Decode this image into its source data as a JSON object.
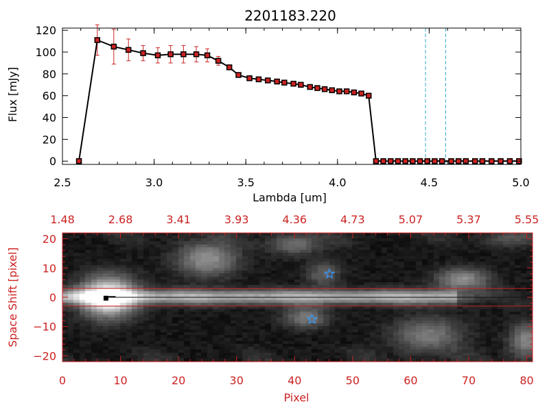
{
  "title": "2201183.220",
  "colors": {
    "black": "#000000",
    "red": "#cc2222",
    "marker_fill": "#cc2222",
    "vline": "#33aacc",
    "star": "#3399ff"
  },
  "chart_data": [
    {
      "type": "line",
      "title": "2201183.220",
      "xlabel": "Lambda [um]",
      "ylabel": "Flux [mJy]",
      "xlim": [
        2.5,
        5.0
      ],
      "ylim": [
        -3,
        122
      ],
      "xticks": [
        2.5,
        3.0,
        3.5,
        4.0,
        4.5,
        5.0
      ],
      "xtick_labels": [
        "2.5",
        "3.0",
        "3.5",
        "4.0",
        "4.5",
        "5.0"
      ],
      "yticks": [
        0,
        20,
        40,
        60,
        80,
        100,
        120
      ],
      "ytick_labels": [
        "0",
        "20",
        "40",
        "60",
        "80",
        "100",
        "120"
      ],
      "grid": false,
      "vertical_lines": [
        4.48,
        4.59
      ],
      "series": [
        {
          "x": [
            2.59,
            2.69,
            2.78,
            2.86,
            2.94,
            3.02,
            3.09,
            3.16,
            3.23,
            3.29,
            3.35,
            3.41,
            3.46,
            3.52,
            3.57,
            3.62,
            3.67,
            3.71,
            3.76,
            3.8,
            3.85,
            3.89,
            3.93,
            3.97,
            4.01,
            4.05,
            4.09,
            4.13,
            4.17,
            4.21,
            4.25,
            4.29,
            4.33,
            4.37,
            4.41,
            4.45,
            4.49,
            4.53,
            4.57,
            4.62,
            4.66,
            4.7,
            4.75,
            4.79,
            4.84,
            4.89,
            4.94,
            4.99
          ],
          "y": [
            0,
            111,
            105,
            102,
            99,
            97,
            98,
            98,
            98,
            97,
            92,
            86,
            79,
            76,
            75,
            74,
            73,
            72,
            71,
            70,
            68,
            67,
            66,
            65,
            64,
            64,
            63,
            62,
            60,
            0,
            0,
            0,
            0,
            0,
            0,
            0,
            0,
            0,
            0,
            0,
            0,
            0,
            0,
            0,
            0,
            0,
            0,
            0
          ],
          "yerr": [
            0,
            14,
            16,
            10,
            7,
            7,
            8,
            8,
            7,
            6,
            4,
            2,
            2,
            1,
            1,
            1,
            1,
            1,
            1,
            1,
            1,
            1,
            1,
            1,
            1,
            1,
            1,
            1,
            1,
            0,
            0,
            0,
            0,
            0,
            0,
            0,
            0,
            0,
            0,
            0,
            0,
            0,
            0,
            0,
            0,
            0,
            0,
            0
          ]
        }
      ]
    },
    {
      "type": "heatmap",
      "xlabel": "Pixel",
      "ylabel": "Space Shift [pixel]",
      "xlim": [
        0,
        81
      ],
      "ylim": [
        -22,
        22
      ],
      "xticks": [
        0,
        10,
        20,
        30,
        40,
        50,
        60,
        70,
        80
      ],
      "xtick_labels": [
        "0",
        "10",
        "20",
        "30",
        "40",
        "50",
        "60",
        "70",
        "80"
      ],
      "yticks": [
        -20,
        -10,
        0,
        10,
        20
      ],
      "ytick_labels": [
        "−20",
        "−10",
        "0",
        "10",
        "20"
      ],
      "top_axis_ticks": [
        0,
        10,
        20,
        30,
        40,
        50,
        60,
        70,
        80
      ],
      "top_axis_labels": [
        "1.48",
        "2.68",
        "3.41",
        "3.93",
        "4.36",
        "4.73",
        "5.07",
        "5.37",
        "5.55"
      ],
      "aperture_lines": [
        3,
        -3
      ],
      "trace_level": 0,
      "sources": [
        {
          "x": 8,
          "y": 0,
          "amp": 1.0,
          "sx": 3.2,
          "sy": 4.5
        },
        {
          "x": 25,
          "y": 13,
          "amp": 0.45,
          "sx": 3.5,
          "sy": 4
        },
        {
          "x": 40,
          "y": 18,
          "amp": 0.3,
          "sx": 3,
          "sy": 2.5
        },
        {
          "x": 45,
          "y": 8,
          "amp": 0.25,
          "sx": 2,
          "sy": 3
        },
        {
          "x": 42,
          "y": -7,
          "amp": 0.35,
          "sx": 2.5,
          "sy": 2.5
        },
        {
          "x": 69,
          "y": 6,
          "amp": 0.45,
          "sx": 3,
          "sy": 2.5
        },
        {
          "x": 63,
          "y": -13,
          "amp": 0.35,
          "sx": 4,
          "sy": 4
        },
        {
          "x": 80,
          "y": -15,
          "amp": 0.4,
          "sx": 2,
          "sy": 4
        },
        {
          "x": 77,
          "y": 20,
          "amp": 0.2,
          "sx": 3,
          "sy": 2
        }
      ],
      "stars": [
        {
          "x": 46,
          "y": 8
        },
        {
          "x": 43,
          "y": -7.5
        }
      ],
      "marker": {
        "x": 7.5,
        "y": -0.3
      }
    }
  ]
}
